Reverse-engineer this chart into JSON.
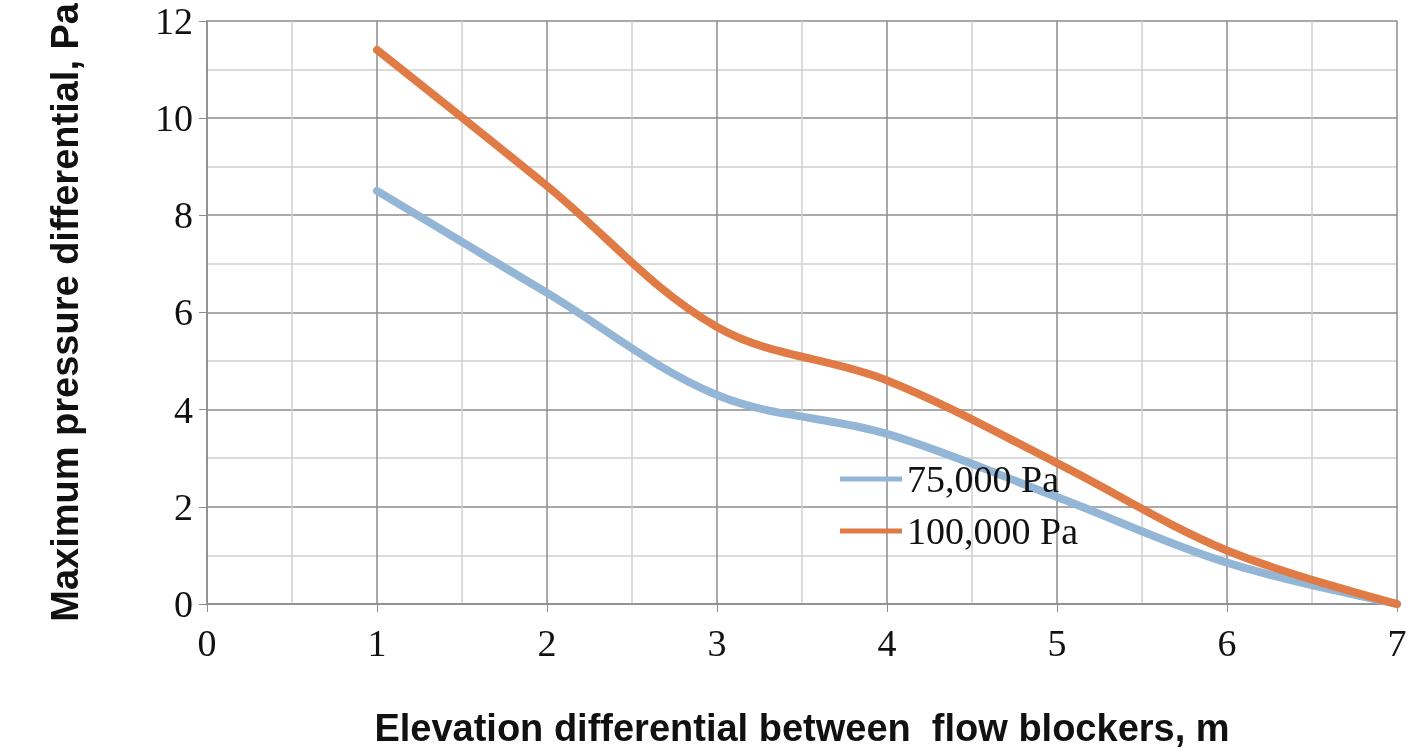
{
  "chart_data": {
    "type": "line",
    "xlabel": "Elevation differential between  flow blockers, m",
    "ylabel": "Maximum pressure differential, Pa",
    "x": [
      1,
      2,
      3,
      4,
      5,
      6,
      7
    ],
    "series": [
      {
        "name": "75,000 Pa",
        "color": "#94b6d6",
        "values": [
          8.5,
          6.4,
          4.3,
          3.5,
          2.2,
          0.85,
          0
        ]
      },
      {
        "name": "100,000 Pa",
        "color": "#e07b45",
        "values": [
          11.4,
          8.6,
          5.7,
          4.6,
          2.9,
          1.1,
          0
        ]
      }
    ],
    "xlim": [
      0,
      7
    ],
    "xticks": [
      0,
      1,
      2,
      3,
      4,
      5,
      6,
      7
    ],
    "ylim": [
      0,
      12
    ],
    "yticks": [
      0,
      2,
      4,
      6,
      8,
      10,
      12
    ],
    "grid": true,
    "legend": "bottom right",
    "marker": "none",
    "line_style": "solid"
  }
}
